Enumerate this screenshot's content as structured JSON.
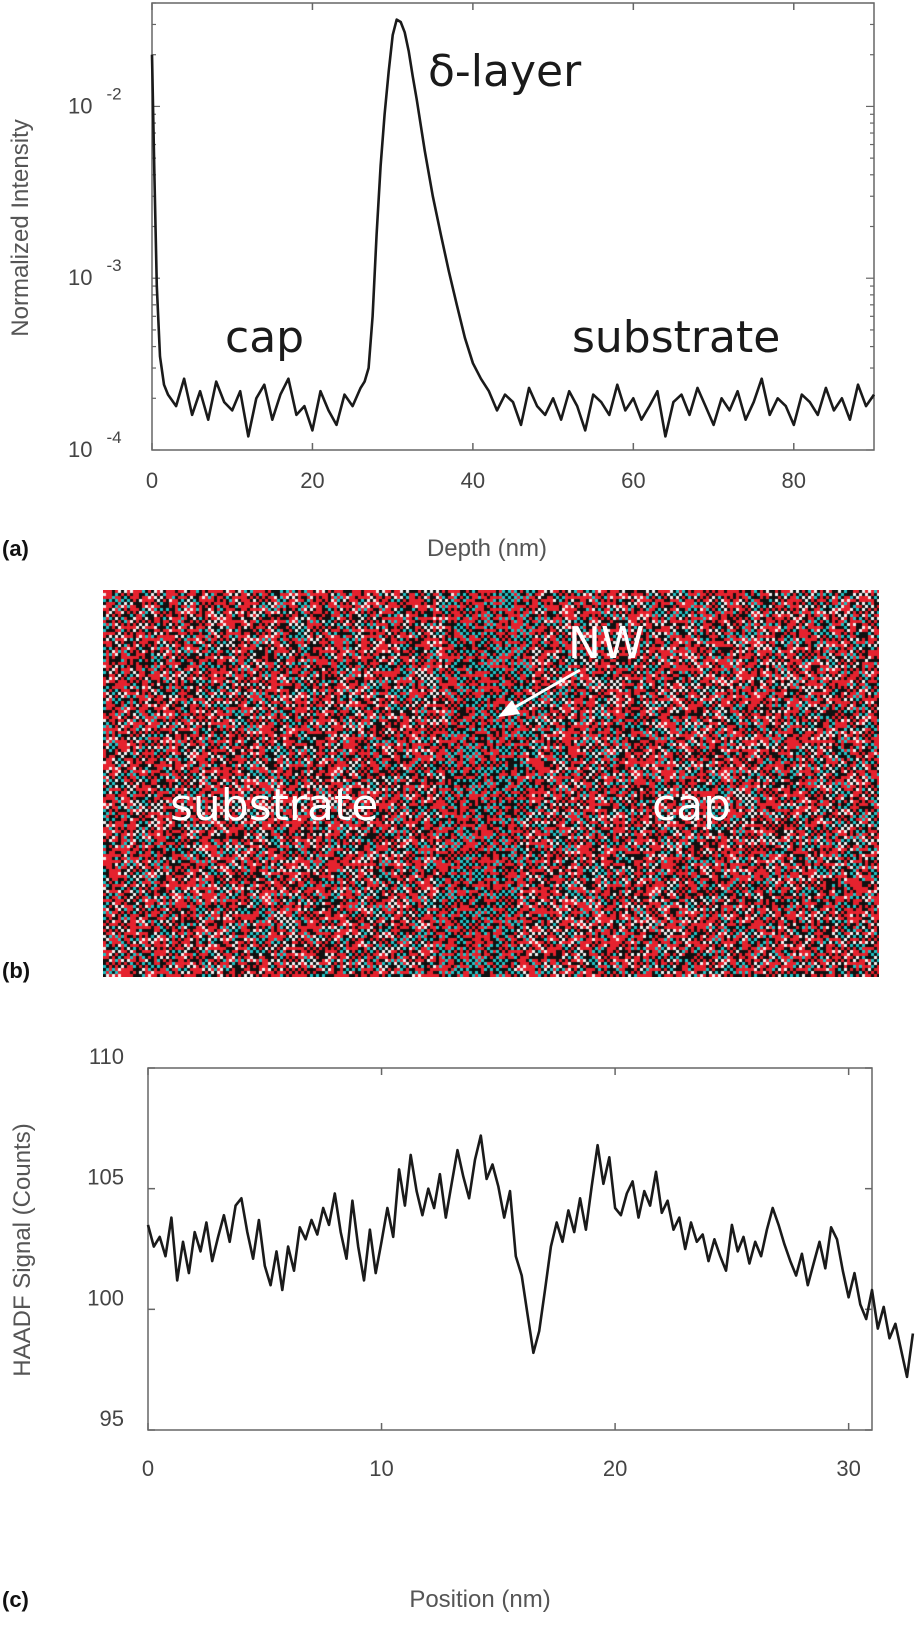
{
  "panel_labels": {
    "a": "(a)",
    "b": "(b)",
    "c": "(c)"
  },
  "chart_data": [
    {
      "type": "line",
      "panel": "a",
      "xlabel": "Depth (nm)",
      "ylabel": "Normalized Intensity",
      "xlim": [
        0,
        90
      ],
      "ylim": [
        0.0001,
        0.04
      ],
      "yscale": "log",
      "xticks": [
        "0",
        "20",
        "40",
        "60",
        "80"
      ],
      "yticks": [
        {
          "base": "10",
          "exp": "-4"
        },
        {
          "base": "10",
          "exp": "-3"
        },
        {
          "base": "10",
          "exp": "-2"
        }
      ],
      "grid": false,
      "line_color": "#1a1a1a",
      "annotations": {
        "peak": "δ-layer",
        "left": "cap",
        "right": "substrate"
      },
      "x": [
        0,
        0.3,
        0.6,
        1,
        1.5,
        2,
        3,
        4,
        5,
        6,
        7,
        8,
        9,
        10,
        11,
        12,
        13,
        14,
        15,
        16,
        17,
        18,
        19,
        20,
        21,
        22,
        23,
        24,
        25,
        26,
        26.5,
        27,
        27.5,
        28,
        28.5,
        29,
        29.5,
        30,
        30.5,
        31,
        31.5,
        32,
        32.5,
        33,
        34,
        35,
        36,
        37,
        38,
        39,
        40,
        41,
        42,
        43,
        44,
        45,
        46,
        47,
        48,
        49,
        50,
        51,
        52,
        53,
        54,
        55,
        56,
        57,
        58,
        59,
        60,
        61,
        62,
        63,
        64,
        65,
        66,
        67,
        68,
        69,
        70,
        71,
        72,
        73,
        74,
        75,
        76,
        77,
        78,
        79,
        80,
        81,
        82,
        83,
        84,
        85,
        86,
        87,
        88,
        89,
        90
      ],
      "y": [
        0.02,
        0.004,
        0.0009,
        0.00035,
        0.00024,
        0.00021,
        0.00018,
        0.00026,
        0.00016,
        0.00022,
        0.00015,
        0.00025,
        0.00019,
        0.00017,
        0.00022,
        0.00012,
        0.0002,
        0.00024,
        0.00015,
        0.00021,
        0.00026,
        0.00016,
        0.00018,
        0.00013,
        0.00022,
        0.00017,
        0.00014,
        0.00021,
        0.00018,
        0.00023,
        0.00025,
        0.0003,
        0.0006,
        0.0018,
        0.0045,
        0.009,
        0.016,
        0.026,
        0.032,
        0.031,
        0.027,
        0.021,
        0.015,
        0.011,
        0.0055,
        0.003,
        0.0018,
        0.0011,
        0.0007,
        0.00045,
        0.00032,
        0.00026,
        0.00022,
        0.00017,
        0.00021,
        0.00019,
        0.00014,
        0.00023,
        0.00018,
        0.00016,
        0.0002,
        0.00015,
        0.00022,
        0.00018,
        0.00013,
        0.00021,
        0.00019,
        0.00016,
        0.00024,
        0.00017,
        0.0002,
        0.00015,
        0.00018,
        0.00022,
        0.00012,
        0.00019,
        0.00021,
        0.00016,
        0.00023,
        0.00018,
        0.00014,
        0.0002,
        0.00017,
        0.00022,
        0.00015,
        0.00019,
        0.00026,
        0.00016,
        0.0002,
        0.00018,
        0.00014,
        0.00021,
        0.00019,
        0.00016,
        0.00023,
        0.00017,
        0.0002,
        0.00015,
        0.00024,
        0.00018,
        0.00021
      ]
    },
    {
      "type": "image",
      "panel": "b",
      "annotations": {
        "arrow_label": "NW",
        "left": "substrate",
        "right": "cap"
      },
      "colors": {
        "red": "#e5222e",
        "cyan": "#21c2c6",
        "dark": "#111111",
        "light": "#f2f2f2"
      }
    },
    {
      "type": "line",
      "panel": "c",
      "xlabel": "Position (nm)",
      "ylabel": "HAADF Signal (Counts)",
      "xlim": [
        0,
        31
      ],
      "ylim": [
        95,
        110
      ],
      "xticks": [
        "0",
        "10",
        "20",
        "30"
      ],
      "yticks": [
        "95",
        "100",
        "105",
        "110"
      ],
      "grid": false,
      "line_color": "#1a1a1a",
      "x_step": 0.25,
      "y": [
        103.5,
        102.6,
        103.0,
        102.2,
        103.8,
        101.2,
        102.8,
        101.5,
        103.2,
        102.4,
        103.6,
        102.0,
        103.0,
        103.9,
        102.8,
        104.3,
        104.6,
        103.2,
        102.1,
        103.7,
        101.8,
        101.0,
        102.4,
        100.8,
        102.6,
        101.6,
        103.4,
        102.9,
        103.7,
        103.1,
        104.2,
        103.5,
        104.8,
        103.2,
        102.1,
        104.5,
        102.6,
        101.2,
        103.3,
        101.5,
        102.8,
        104.2,
        103.0,
        105.8,
        104.3,
        106.4,
        104.9,
        103.9,
        105.0,
        104.2,
        105.6,
        103.8,
        105.2,
        106.6,
        105.5,
        104.6,
        106.2,
        107.2,
        105.4,
        106.0,
        105.1,
        103.8,
        104.9,
        102.2,
        101.4,
        99.8,
        98.2,
        99.1,
        100.8,
        102.6,
        103.6,
        102.8,
        104.1,
        103.2,
        104.6,
        103.3,
        105.1,
        106.8,
        105.2,
        106.3,
        104.2,
        103.9,
        104.8,
        105.3,
        103.8,
        104.9,
        104.3,
        105.7,
        104.0,
        104.5,
        103.3,
        103.8,
        102.5,
        103.6,
        102.8,
        103.1,
        102.0,
        102.9,
        102.2,
        101.6,
        103.5,
        102.4,
        103.0,
        101.9,
        102.8,
        102.2,
        103.3,
        104.2,
        103.5,
        102.7,
        102.0,
        101.4,
        102.3,
        101.0,
        101.9,
        102.8,
        101.7,
        103.4,
        102.9,
        101.6,
        100.5,
        101.5,
        100.2,
        99.6,
        100.8,
        99.2,
        100.1,
        98.8,
        99.4,
        98.3,
        97.2,
        99.0
      ]
    }
  ]
}
